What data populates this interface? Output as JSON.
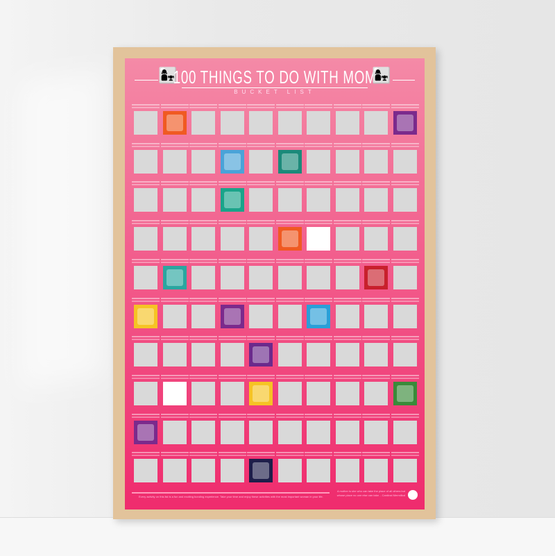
{
  "poster": {
    "title": "100 THINGS TO DO WITH MOM",
    "subtitle": "BUCKET LIST",
    "footer_left": "Every activity on this list is a fun and exciting bonding experience. Take your time and enjoy these activities with the most important woman in your life.",
    "footer_quote": "A mother is she who can take the place of all others but whose place no one else can take. - Cardinal Mermillod",
    "colors": {
      "top": "#f48aa7",
      "bottom": "#ef2b6d",
      "frame": "#e2c39b",
      "square": "#d9d9d9"
    },
    "grid": {
      "rows": 10,
      "cols": 10
    },
    "scratched": [
      {
        "row": 0,
        "col": 1,
        "color": "#f05a22",
        "icon": "game-console-icon"
      },
      {
        "row": 0,
        "col": 9,
        "color": "#7b2a8c",
        "icon": "ice-skate-icon"
      },
      {
        "row": 1,
        "col": 3,
        "color": "#4aa3d8",
        "icon": "science-icon"
      },
      {
        "row": 1,
        "col": 5,
        "color": "#1b8a7a",
        "icon": "boat-icon"
      },
      {
        "row": 2,
        "col": 3,
        "color": "#1aa48a",
        "icon": "chat-icon"
      },
      {
        "row": 3,
        "col": 5,
        "color": "#f05a22",
        "icon": "shop-icon"
      },
      {
        "row": 3,
        "col": 6,
        "color": "#ffffff",
        "icon": "plants-icon"
      },
      {
        "row": 4,
        "col": 1,
        "color": "#2aa6a0",
        "icon": "market-stall-icon"
      },
      {
        "row": 4,
        "col": 8,
        "color": "#c8202c",
        "icon": "food-icon"
      },
      {
        "row": 5,
        "col": 0,
        "color": "#f6c324",
        "icon": "coffee-icon"
      },
      {
        "row": 5,
        "col": 3,
        "color": "#7b2a8c",
        "icon": "tent-icon"
      },
      {
        "row": 5,
        "col": 6,
        "color": "#2a9fd8",
        "icon": "frame-icon"
      },
      {
        "row": 6,
        "col": 4,
        "color": "#6b2a8c",
        "icon": "cake-icon"
      },
      {
        "row": 7,
        "col": 1,
        "color": "#ffffff",
        "icon": "basket-icon"
      },
      {
        "row": 7,
        "col": 4,
        "color": "#f6c324",
        "icon": "gift-icon"
      },
      {
        "row": 7,
        "col": 9,
        "color": "#3a8a3a",
        "icon": "pot-icon"
      },
      {
        "row": 8,
        "col": 0,
        "color": "#7b2a8c",
        "icon": "train-icon"
      },
      {
        "row": 9,
        "col": 4,
        "color": "#1e1e4a",
        "icon": "theatre-icon"
      }
    ]
  }
}
